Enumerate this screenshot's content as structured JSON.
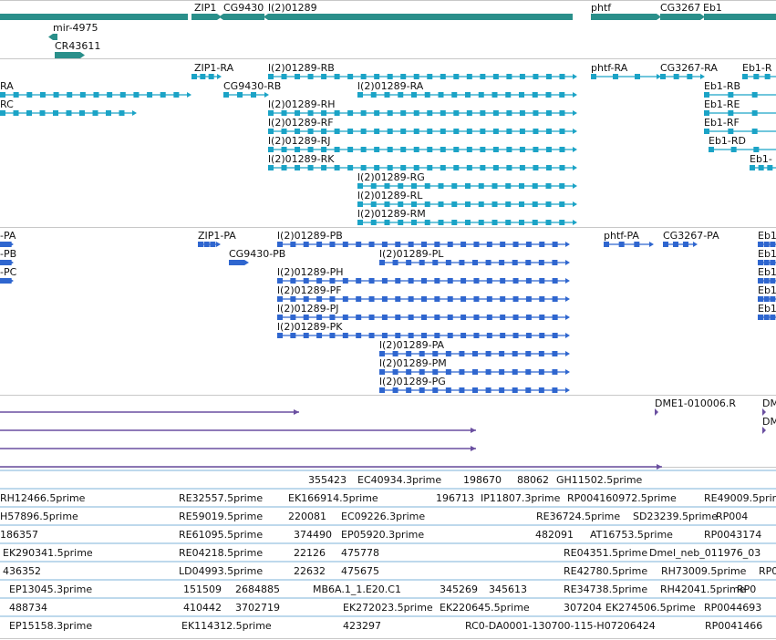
{
  "colors": {
    "gene": "#2a8f8a",
    "transcript": "#1ba3c6",
    "protein": "#2f66cf",
    "alignment": "#6a4fa0",
    "est": "#7eb3d8",
    "divider": "#c8c8c8",
    "label": "#111111"
  },
  "tracks": [
    {
      "name": "genes",
      "features": [
        {
          "label": "ZIP1",
          "kind": "gene",
          "strand": "+"
        },
        {
          "label": "CG9430",
          "kind": "gene",
          "strand": "-"
        },
        {
          "label": "l(2)01289",
          "kind": "gene",
          "strand": "-"
        },
        {
          "label": "phtf",
          "kind": "gene",
          "strand": "+"
        },
        {
          "label": "CG3267",
          "kind": "gene",
          "strand": "+"
        },
        {
          "label": "Eb1",
          "kind": "gene",
          "strand": "+"
        },
        {
          "label": "mir-4975",
          "kind": "gene",
          "strand": "-"
        },
        {
          "label": "CR43611",
          "kind": "gene",
          "strand": "+"
        }
      ]
    },
    {
      "name": "transcripts",
      "features": [
        {
          "label": "RA",
          "kind": "transcript"
        },
        {
          "label": "RC",
          "kind": "transcript"
        },
        {
          "label": "ZIP1-RA",
          "kind": "transcript"
        },
        {
          "label": "CG9430-RB",
          "kind": "transcript"
        },
        {
          "label": "l(2)01289-RB",
          "kind": "transcript"
        },
        {
          "label": "l(2)01289-RA",
          "kind": "transcript"
        },
        {
          "label": "l(2)01289-RH",
          "kind": "transcript"
        },
        {
          "label": "l(2)01289-RF",
          "kind": "transcript"
        },
        {
          "label": "l(2)01289-RJ",
          "kind": "transcript"
        },
        {
          "label": "l(2)01289-RK",
          "kind": "transcript"
        },
        {
          "label": "l(2)01289-RG",
          "kind": "transcript"
        },
        {
          "label": "l(2)01289-RL",
          "kind": "transcript"
        },
        {
          "label": "l(2)01289-RM",
          "kind": "transcript"
        },
        {
          "label": "phtf-RA",
          "kind": "transcript"
        },
        {
          "label": "CG3267-RA",
          "kind": "transcript"
        },
        {
          "label": "Eb1-R",
          "kind": "transcript"
        },
        {
          "label": "Eb1-RB",
          "kind": "transcript"
        },
        {
          "label": "Eb1-RE",
          "kind": "transcript"
        },
        {
          "label": "Eb1-RF",
          "kind": "transcript"
        },
        {
          "label": "Eb1-RD",
          "kind": "transcript"
        },
        {
          "label": "Eb1-",
          "kind": "transcript"
        }
      ]
    },
    {
      "name": "proteins",
      "features": [
        {
          "label": "-PA",
          "kind": "protein"
        },
        {
          "label": "-PB",
          "kind": "protein"
        },
        {
          "label": "-PC",
          "kind": "protein"
        },
        {
          "label": "ZIP1-PA",
          "kind": "protein"
        },
        {
          "label": "CG9430-PB",
          "kind": "protein"
        },
        {
          "label": "l(2)01289-PB",
          "kind": "protein"
        },
        {
          "label": "l(2)01289-PL",
          "kind": "protein"
        },
        {
          "label": "l(2)01289-PH",
          "kind": "protein"
        },
        {
          "label": "l(2)01289-PF",
          "kind": "protein"
        },
        {
          "label": "l(2)01289-PJ",
          "kind": "protein"
        },
        {
          "label": "l(2)01289-PK",
          "kind": "protein"
        },
        {
          "label": "l(2)01289-PA",
          "kind": "protein"
        },
        {
          "label": "l(2)01289-PM",
          "kind": "protein"
        },
        {
          "label": "l(2)01289-PG",
          "kind": "protein"
        },
        {
          "label": "phtf-PA",
          "kind": "protein"
        },
        {
          "label": "CG3267-PA",
          "kind": "protein"
        },
        {
          "label": "Eb1",
          "kind": "protein"
        },
        {
          "label": "Eb1",
          "kind": "protein"
        },
        {
          "label": "Eb1",
          "kind": "protein"
        },
        {
          "label": "Eb1",
          "kind": "protein"
        },
        {
          "label": "Eb1",
          "kind": "protein"
        }
      ]
    },
    {
      "name": "alignments",
      "features": [
        {
          "label": "DME1-010006.R",
          "kind": "alignment"
        },
        {
          "label": "DM",
          "kind": "alignment"
        },
        {
          "label": "DM",
          "kind": "alignment"
        }
      ]
    },
    {
      "name": "ests",
      "features": [
        {
          "label": "355423"
        },
        {
          "label": "EC40934.3prime"
        },
        {
          "label": "198670"
        },
        {
          "label": "88062"
        },
        {
          "label": "GH11502.5prime"
        },
        {
          "label": "RH12466.5prime"
        },
        {
          "label": "RE32557.5prime"
        },
        {
          "label": "EK166914.5prime"
        },
        {
          "label": "196713"
        },
        {
          "label": "IP11807.3prime"
        },
        {
          "label": "RP004160972.5prime"
        },
        {
          "label": "RE49009.5prime"
        },
        {
          "label": "H57896.5prime"
        },
        {
          "label": "RE59019.5prime"
        },
        {
          "label": "220081"
        },
        {
          "label": "EC09226.3prime"
        },
        {
          "label": "RE36724.5prime"
        },
        {
          "label": "SD23239.5prime"
        },
        {
          "label": "RP004"
        },
        {
          "label": "186357"
        },
        {
          "label": "RE61095.5prime"
        },
        {
          "label": "374490"
        },
        {
          "label": "EP05920.3prime"
        },
        {
          "label": "482091"
        },
        {
          "label": "AT16753.5prime"
        },
        {
          "label": "RP0043174"
        },
        {
          "label": "EK290341.5prime"
        },
        {
          "label": "RE04218.5prime"
        },
        {
          "label": "22126"
        },
        {
          "label": "475778"
        },
        {
          "label": "RE04351.5prime"
        },
        {
          "label": "Dmel_neb_011976_03"
        },
        {
          "label": "436352"
        },
        {
          "label": "LD04993.5prime"
        },
        {
          "label": "22632"
        },
        {
          "label": "475675"
        },
        {
          "label": "RE42780.5prime"
        },
        {
          "label": "RH73009.5prime"
        },
        {
          "label": "RP0"
        },
        {
          "label": "EP13045.3prime"
        },
        {
          "label": "151509"
        },
        {
          "label": "2684885"
        },
        {
          "label": "MB6A.1_1.E20.C1"
        },
        {
          "label": "345269"
        },
        {
          "label": "345613"
        },
        {
          "label": "RE34738.5prime"
        },
        {
          "label": "RH42041.5prime"
        },
        {
          "label": "RP0"
        },
        {
          "label": "488734"
        },
        {
          "label": "410442"
        },
        {
          "label": "3702719"
        },
        {
          "label": "EK272023.5prime"
        },
        {
          "label": "EK220645.5prime"
        },
        {
          "label": "307204"
        },
        {
          "label": "EK274506.5prime"
        },
        {
          "label": "RP0044693"
        },
        {
          "label": "EP15158.3prime"
        },
        {
          "label": "EK114312.5prime"
        },
        {
          "label": "423297"
        },
        {
          "label": "RC0-DA0001-130700-115-H07206424"
        },
        {
          "label": "RP0041466"
        }
      ]
    }
  ]
}
